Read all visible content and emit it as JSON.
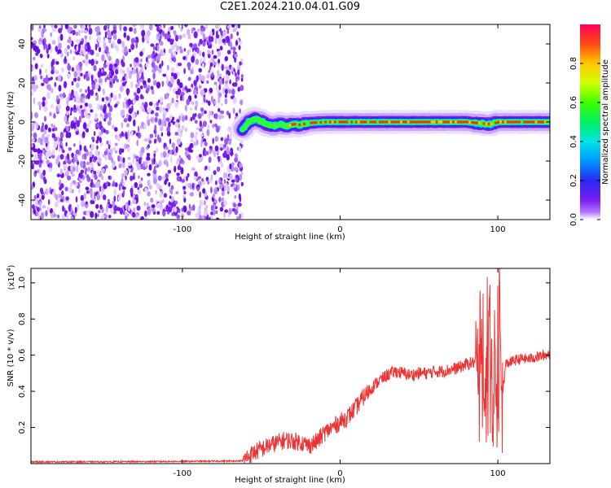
{
  "figure": {
    "title": "C2E1.2024.210.04.01.G09"
  },
  "chart_data": [
    {
      "type": "heatmap",
      "title": "",
      "xlabel": "Height of straight line (km)",
      "ylabel": "Frequency (Hz)",
      "xlim": [
        -196,
        133
      ],
      "ylim": [
        -50,
        50
      ],
      "xticks": [
        -100,
        0,
        100
      ],
      "yticks": [
        -40,
        -20,
        0,
        20,
        40
      ],
      "xtick_labels": [
        "-100",
        "0",
        "100"
      ],
      "ytick_labels": [
        "-40",
        "-20",
        "0",
        "20",
        "40"
      ],
      "colorbar": {
        "label": "Normalized spectral amplitude",
        "range": [
          0,
          1
        ],
        "ticks": [
          0.0,
          0.2,
          0.4,
          0.6,
          0.8
        ],
        "tick_labels": [
          "0.0",
          "0.2",
          "0.4",
          "0.6",
          "0.8"
        ],
        "colormap": "rainbow (violet to red)"
      },
      "regions": [
        {
          "x_range": [
            -196,
            -62
          ],
          "description_values": "broadband noise, amplitude 0.05-0.3 across all frequencies"
        },
        {
          "x_range": [
            -62,
            133
          ],
          "center_frequency_hz": 0,
          "peak_amplitude": 1.0
        }
      ],
      "ridge": {
        "x": [
          -62,
          -58,
          -54,
          -50,
          -46,
          -42,
          -38,
          -34,
          -30,
          -26,
          -20,
          -10,
          0,
          20,
          40,
          60,
          80,
          90,
          95,
          100,
          133
        ],
        "y": [
          -4,
          0,
          1.5,
          0.5,
          -1.5,
          -2,
          -1,
          -2,
          -1,
          -1.5,
          -0.5,
          0,
          0,
          0,
          0,
          0,
          0,
          -0.8,
          -1.2,
          0,
          0
        ]
      }
    },
    {
      "type": "line",
      "title": "",
      "xlabel": "Height of straight line (km)",
      "ylabel": "SNR (10 * v/v)",
      "y_scale_label": "(x10^4)",
      "xlim": [
        -196,
        133
      ],
      "ylim": [
        0,
        1.08
      ],
      "xticks": [
        -100,
        0,
        100
      ],
      "yticks": [
        0.2,
        0.4,
        0.6,
        0.8,
        1.0
      ],
      "xtick_labels": [
        "-100",
        "0",
        "100"
      ],
      "ytick_labels": [
        "0.2",
        "0.4",
        "0.6",
        "0.8",
        "1.0"
      ],
      "series": [
        {
          "color": "#ee3333",
          "x": [
            -196,
            -150,
            -100,
            -62,
            -55,
            -45,
            -35,
            -25,
            -20,
            -15,
            -10,
            -5,
            0,
            5,
            10,
            15,
            20,
            25,
            30,
            35,
            40,
            45,
            50,
            55,
            60,
            65,
            70,
            75,
            80,
            85,
            88,
            90,
            92,
            95,
            97,
            98,
            100,
            101,
            102,
            105,
            110,
            115,
            120,
            125,
            130,
            133
          ],
          "y": [
            0.01,
            0.01,
            0.012,
            0.015,
            0.06,
            0.1,
            0.13,
            0.12,
            0.1,
            0.12,
            0.17,
            0.2,
            0.23,
            0.26,
            0.31,
            0.37,
            0.42,
            0.46,
            0.49,
            0.51,
            0.5,
            0.49,
            0.5,
            0.5,
            0.51,
            0.51,
            0.52,
            0.53,
            0.55,
            0.56,
            0.6,
            0.75,
            0.35,
            0.85,
            0.2,
            0.8,
            0.05,
            1.08,
            0.3,
            0.55,
            0.57,
            0.58,
            0.58,
            0.59,
            0.6,
            0.61
          ]
        }
      ]
    }
  ]
}
